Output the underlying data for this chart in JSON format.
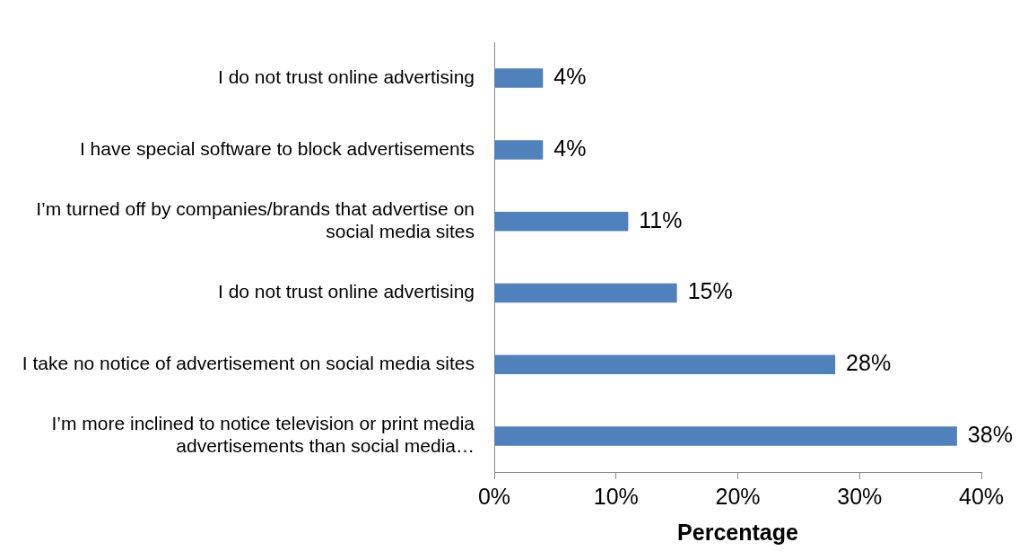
{
  "chart_data": {
    "type": "bar",
    "orientation": "horizontal",
    "categories": [
      "I do not trust online advertising",
      "I have special software to block advertisements",
      "I’m turned off by companies/brands that advertise on social media sites",
      "I do not trust online advertising",
      "I take no notice of advertisement on social media sites",
      "I’m more inclined to notice television or print media advertisements than social media…"
    ],
    "values": [
      4,
      4,
      11,
      15,
      28,
      38
    ],
    "value_labels": [
      "4%",
      "4%",
      "11%",
      "15%",
      "28%",
      "38%"
    ],
    "color": "#4f81bd",
    "xlim": [
      0,
      40
    ],
    "xticks": [
      {
        "value": 0,
        "label": "0%"
      },
      {
        "value": 10,
        "label": "10%"
      },
      {
        "value": 20,
        "label": "20%"
      },
      {
        "value": 30,
        "label": "30%"
      },
      {
        "value": 40,
        "label": "40%"
      }
    ],
    "xlabel": "Percentage",
    "grid": false,
    "legend": false
  }
}
